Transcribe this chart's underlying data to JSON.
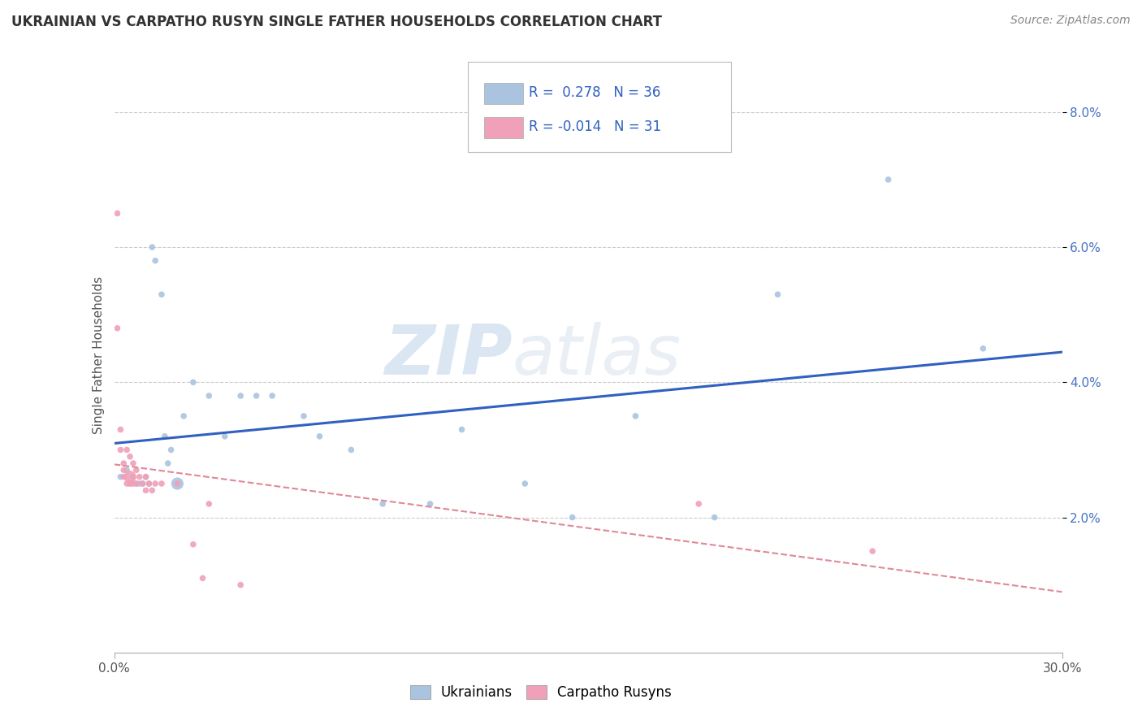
{
  "title": "UKRAINIAN VS CARPATHO RUSYN SINGLE FATHER HOUSEHOLDS CORRELATION CHART",
  "source": "Source: ZipAtlas.com",
  "ylabel_text": "Single Father Households",
  "legend_labels": [
    "Ukrainians",
    "Carpatho Rusyns"
  ],
  "xmin": 0.0,
  "xmax": 0.3,
  "ymin": 0.0,
  "ymax": 0.088,
  "xticks": [
    0.0,
    0.3
  ],
  "yticks": [
    0.02,
    0.04,
    0.06,
    0.08
  ],
  "xtick_labels": [
    "0.0%",
    "30.0%"
  ],
  "ytick_labels": [
    "2.0%",
    "4.0%",
    "6.0%",
    "8.0%"
  ],
  "r_ukrainian": 0.278,
  "n_ukrainian": 36,
  "r_carpatho": -0.014,
  "n_carpatho": 31,
  "color_ukrainian": "#aac4e0",
  "color_carpatho": "#f0a0b8",
  "line_color_ukrainian": "#3060c0",
  "line_color_carpatho": "#e08898",
  "watermark_zip": "ZIP",
  "watermark_atlas": "atlas",
  "ukrainian_x": [
    0.002,
    0.004,
    0.005,
    0.006,
    0.007,
    0.008,
    0.009,
    0.01,
    0.011,
    0.012,
    0.013,
    0.015,
    0.016,
    0.017,
    0.018,
    0.02,
    0.022,
    0.025,
    0.03,
    0.035,
    0.04,
    0.045,
    0.05,
    0.06,
    0.065,
    0.075,
    0.085,
    0.1,
    0.11,
    0.13,
    0.145,
    0.165,
    0.19,
    0.21,
    0.245,
    0.275
  ],
  "ukrainian_y": [
    0.026,
    0.027,
    0.025,
    0.026,
    0.025,
    0.025,
    0.025,
    0.026,
    0.025,
    0.06,
    0.058,
    0.053,
    0.032,
    0.028,
    0.03,
    0.025,
    0.035,
    0.04,
    0.038,
    0.032,
    0.038,
    0.038,
    0.038,
    0.035,
    0.032,
    0.03,
    0.022,
    0.022,
    0.033,
    0.025,
    0.02,
    0.035,
    0.02,
    0.053,
    0.07,
    0.045
  ],
  "ukrainian_size": [
    30,
    30,
    30,
    30,
    30,
    30,
    30,
    30,
    30,
    30,
    30,
    30,
    30,
    30,
    30,
    120,
    30,
    30,
    30,
    30,
    30,
    30,
    30,
    30,
    30,
    30,
    30,
    30,
    30,
    30,
    30,
    30,
    30,
    30,
    30,
    30
  ],
  "carpatho_x": [
    0.001,
    0.001,
    0.002,
    0.002,
    0.003,
    0.003,
    0.003,
    0.004,
    0.004,
    0.005,
    0.005,
    0.005,
    0.006,
    0.006,
    0.007,
    0.007,
    0.008,
    0.009,
    0.01,
    0.01,
    0.011,
    0.012,
    0.013,
    0.015,
    0.02,
    0.025,
    0.028,
    0.03,
    0.04,
    0.185,
    0.24
  ],
  "carpatho_y": [
    0.065,
    0.048,
    0.03,
    0.033,
    0.027,
    0.026,
    0.028,
    0.025,
    0.03,
    0.026,
    0.029,
    0.025,
    0.028,
    0.025,
    0.027,
    0.025,
    0.026,
    0.025,
    0.026,
    0.024,
    0.025,
    0.024,
    0.025,
    0.025,
    0.025,
    0.016,
    0.011,
    0.022,
    0.01,
    0.022,
    0.015
  ],
  "carpatho_size": [
    30,
    30,
    30,
    30,
    30,
    30,
    30,
    30,
    30,
    120,
    30,
    30,
    30,
    30,
    30,
    30,
    30,
    30,
    30,
    30,
    30,
    30,
    30,
    30,
    30,
    30,
    30,
    30,
    30,
    30,
    30
  ]
}
